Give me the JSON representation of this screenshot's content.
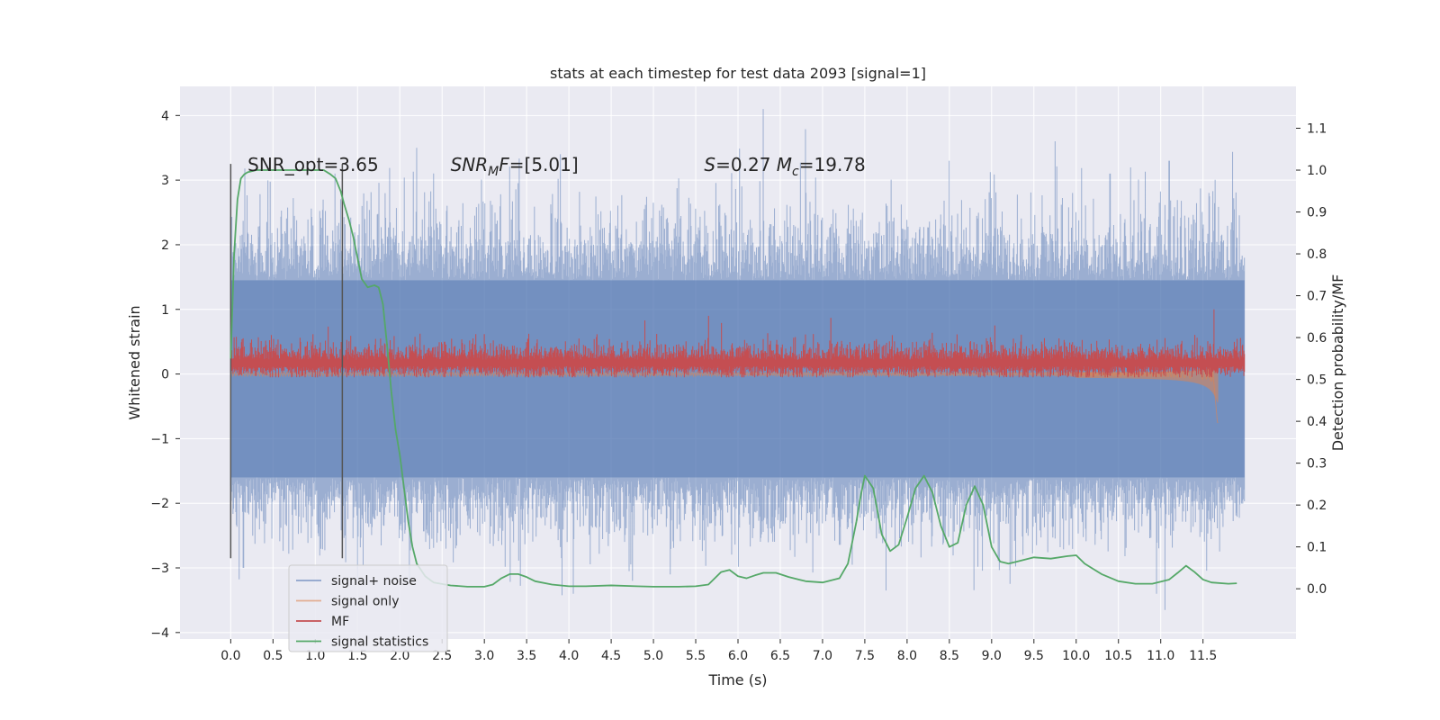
{
  "chart_data": {
    "type": "line",
    "title": "stats at each timestep for test data 2093 [signal=1]",
    "xlabel": "Time (s)",
    "ylabel": "Whitened strain",
    "y2label": "Detection probability/MF",
    "xlim": [
      -0.6,
      12.6
    ],
    "ylim": [
      -4.1,
      4.45
    ],
    "y2lim": [
      -0.12,
      1.2
    ],
    "xticks": [
      0.0,
      0.5,
      1.0,
      1.5,
      2.0,
      2.5,
      3.0,
      3.5,
      4.0,
      4.5,
      5.0,
      5.5,
      6.0,
      6.5,
      7.0,
      7.5,
      8.0,
      8.5,
      9.0,
      9.5,
      10.0,
      10.5,
      11.0,
      11.5
    ],
    "xtick_labels": [
      "0.0",
      "0.5",
      "1.0",
      "1.5",
      "2.0",
      "2.5",
      "3.0",
      "3.5",
      "4.0",
      "4.5",
      "5.0",
      "5.5",
      "6.0",
      "6.5",
      "7.0",
      "7.5",
      "8.0",
      "8.5",
      "9.0",
      "9.5",
      "10.0",
      "10.5",
      "11.0",
      "11.5"
    ],
    "yticks": [
      -4,
      -3,
      -2,
      -1,
      0,
      1,
      2,
      3,
      4
    ],
    "ytick_labels": [
      "−4",
      "−3",
      "−2",
      "−1",
      "0",
      "1",
      "2",
      "3",
      "4"
    ],
    "y2ticks": [
      0.0,
      0.1,
      0.2,
      0.3,
      0.4,
      0.5,
      0.6,
      0.7,
      0.8,
      0.9,
      1.0,
      1.1
    ],
    "y2tick_labels": [
      "0.0",
      "0.1",
      "0.2",
      "0.3",
      "0.4",
      "0.5",
      "0.6",
      "0.7",
      "0.8",
      "0.9",
      "1.0",
      "1.1"
    ],
    "grid": true,
    "legend_position": "lower-left",
    "annotations": [
      {
        "text": "SNR_opt=3.65",
        "x": 0.2,
        "y": 3.2
      },
      {
        "text": "SNR_MF=[5.01]",
        "x": 2.6,
        "y": 3.2
      },
      {
        "text": "S=0.27   M_c=19.78",
        "x": 5.6,
        "y": 3.2
      }
    ],
    "vertical_lines": [
      {
        "x": 0.0,
        "y_range": [
          -2.85,
          3.25
        ],
        "color": "#555555"
      },
      {
        "x": 1.32,
        "y_range": [
          -2.85,
          3.25
        ],
        "color": "#555555"
      }
    ],
    "series": [
      {
        "name": "signal+ noise",
        "axis": "left",
        "color": "#4c72b0",
        "kind": "noise-band",
        "x_range": [
          0.0,
          11.99
        ],
        "typical_envelope": [
          -1.6,
          1.45
        ],
        "extreme_range": [
          -3.7,
          4.1
        ],
        "peaks": [
          [
            6.3,
            4.1
          ],
          [
            2.2,
            3.5
          ],
          [
            3.9,
            3.4
          ],
          [
            8.5,
            3.3
          ],
          [
            9.75,
            3.6
          ],
          [
            10.4,
            3.1
          ],
          [
            11.1,
            3.3
          ]
        ],
        "troughs": [
          [
            0.15,
            -3.0
          ],
          [
            4.05,
            -3.4
          ],
          [
            4.75,
            -3.2
          ],
          [
            5.2,
            -3.1
          ],
          [
            11.05,
            -3.65
          ],
          [
            10.95,
            -3.4
          ],
          [
            7.75,
            -3.35
          ]
        ]
      },
      {
        "name": "signal only",
        "axis": "left",
        "color": "#dd8452",
        "kind": "chirp",
        "x_range": [
          0.0,
          11.68
        ],
        "final_amplitude": [
          -0.75,
          0.45
        ]
      },
      {
        "name": "MF",
        "axis": "left",
        "color": "#c44e52",
        "kind": "noise-band",
        "x_range": [
          0.0,
          11.99
        ],
        "typical_envelope": [
          0.0,
          0.4
        ],
        "extreme_range": [
          -0.05,
          1.0
        ],
        "peaks": [
          [
            11.63,
            1.0
          ],
          [
            5.65,
            0.9
          ],
          [
            7.1,
            0.87
          ],
          [
            4.9,
            0.83
          ]
        ]
      },
      {
        "name": "signal statistics",
        "axis": "right",
        "color": "#55a868",
        "x": [
          0.0,
          0.04,
          0.08,
          0.12,
          0.16,
          0.2,
          0.3,
          0.5,
          0.8,
          1.0,
          1.1,
          1.18,
          1.24,
          1.3,
          1.34,
          1.4,
          1.45,
          1.5,
          1.55,
          1.62,
          1.7,
          1.75,
          1.8,
          1.85,
          1.9,
          1.95,
          2.0,
          2.05,
          2.1,
          2.15,
          2.2,
          2.3,
          2.4,
          2.6,
          2.8,
          3.0,
          3.1,
          3.2,
          3.3,
          3.4,
          3.5,
          3.6,
          3.8,
          4.0,
          4.2,
          4.5,
          4.8,
          5.0,
          5.3,
          5.5,
          5.65,
          5.8,
          5.9,
          6.0,
          6.1,
          6.2,
          6.3,
          6.45,
          6.6,
          6.8,
          7.0,
          7.2,
          7.3,
          7.4,
          7.45,
          7.5,
          7.6,
          7.7,
          7.8,
          7.9,
          8.0,
          8.1,
          8.2,
          8.3,
          8.4,
          8.5,
          8.6,
          8.7,
          8.8,
          8.9,
          9.0,
          9.1,
          9.2,
          9.3,
          9.5,
          9.7,
          9.9,
          10.0,
          10.1,
          10.3,
          10.5,
          10.7,
          10.9,
          11.1,
          11.2,
          11.3,
          11.4,
          11.5,
          11.6,
          11.8,
          11.9
        ],
        "y": [
          0.55,
          0.8,
          0.93,
          0.98,
          0.99,
          0.995,
          1.0,
          1.0,
          1.0,
          1.0,
          1.0,
          0.99,
          0.98,
          0.95,
          0.92,
          0.88,
          0.84,
          0.79,
          0.74,
          0.72,
          0.725,
          0.72,
          0.68,
          0.58,
          0.47,
          0.38,
          0.32,
          0.24,
          0.16,
          0.1,
          0.06,
          0.03,
          0.015,
          0.008,
          0.005,
          0.005,
          0.01,
          0.025,
          0.035,
          0.035,
          0.028,
          0.018,
          0.01,
          0.006,
          0.006,
          0.008,
          0.006,
          0.005,
          0.005,
          0.006,
          0.01,
          0.04,
          0.045,
          0.03,
          0.025,
          0.032,
          0.038,
          0.038,
          0.028,
          0.018,
          0.015,
          0.025,
          0.06,
          0.16,
          0.22,
          0.27,
          0.24,
          0.13,
          0.09,
          0.105,
          0.17,
          0.24,
          0.27,
          0.23,
          0.15,
          0.1,
          0.11,
          0.2,
          0.245,
          0.2,
          0.1,
          0.065,
          0.06,
          0.065,
          0.075,
          0.072,
          0.078,
          0.08,
          0.06,
          0.035,
          0.018,
          0.012,
          0.012,
          0.022,
          0.038,
          0.055,
          0.04,
          0.022,
          0.015,
          0.012,
          0.013
        ]
      }
    ]
  }
}
